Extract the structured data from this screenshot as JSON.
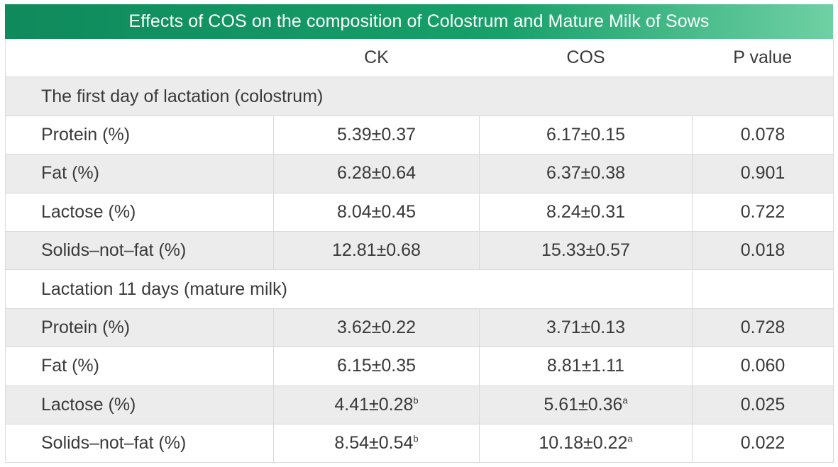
{
  "title": "Effects of COS on the composition of Colostrum and Mature Milk of Sows",
  "columns": [
    "",
    "CK",
    "COS",
    "P value"
  ],
  "sections": [
    {
      "label": "The first day of lactation (colostrum)",
      "rows": [
        {
          "name": "Protein (%)",
          "ck": "5.39±0.37",
          "ck_sup": "",
          "cos": "6.17±0.15",
          "cos_sup": "",
          "p": "0.078"
        },
        {
          "name": "Fat (%)",
          "ck": "6.28±0.64",
          "ck_sup": "",
          "cos": "6.37±0.38",
          "cos_sup": "",
          "p": "0.901"
        },
        {
          "name": "Lactose (%)",
          "ck": "8.04±0.45",
          "ck_sup": "",
          "cos": "8.24±0.31",
          "cos_sup": "",
          "p": "0.722"
        },
        {
          "name": "Solids–not–fat (%)",
          "ck": "12.81±0.68",
          "ck_sup": "",
          "cos": "15.33±0.57",
          "cos_sup": "",
          "p": "0.018"
        }
      ]
    },
    {
      "label": "Lactation 11 days (mature milk)",
      "rows": [
        {
          "name": "Protein (%)",
          "ck": "3.62±0.22",
          "ck_sup": "",
          "cos": "3.71±0.13",
          "cos_sup": "",
          "p": "0.728"
        },
        {
          "name": "Fat (%)",
          "ck": "6.15±0.35",
          "ck_sup": "",
          "cos": "8.81±1.11",
          "cos_sup": "",
          "p": "0.060"
        },
        {
          "name": "Lactose (%)",
          "ck": "4.41±0.28",
          "ck_sup": "b",
          "cos": "5.61±0.36",
          "cos_sup": "a",
          "p": "0.025"
        },
        {
          "name": "Solids–not–fat (%)",
          "ck": "8.54±0.54",
          "ck_sup": "b",
          "cos": "10.18±0.22",
          "cos_sup": "a",
          "p": "0.022"
        }
      ]
    }
  ]
}
